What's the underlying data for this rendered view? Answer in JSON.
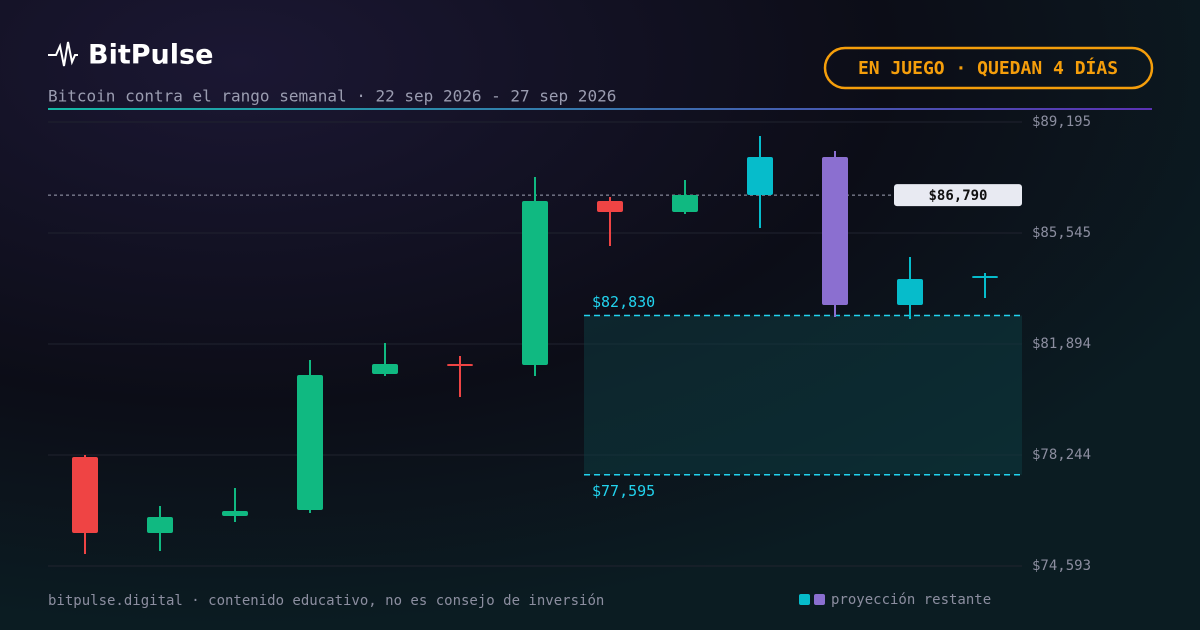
{
  "brand": "BitPulse",
  "subtitle": "Bitcoin contra el rango semanal · 22 sep 2026 - 27 sep 2026",
  "badge": "EN JUEGO · QUEDAN 4 DÍAS",
  "footer": "bitpulse.digital · contenido educativo, no es consejo de inversión",
  "chart_data": {
    "type": "candlestick",
    "ylim": [
      74593,
      89195
    ],
    "yticks": [
      {
        "value": 89195,
        "label": "$89,195"
      },
      {
        "value": 85545,
        "label": "$85,545"
      },
      {
        "value": 81894,
        "label": "$81,894"
      },
      {
        "value": 78244,
        "label": "$78,244"
      },
      {
        "value": 74593,
        "label": "$74,593"
      }
    ],
    "grid": true,
    "up_color": "#10b981",
    "down_color": "#ef4444",
    "projection_up_color": "#06bccb",
    "projection_down_color": "#8b6fd0",
    "candles": [
      {
        "open": 78178,
        "high": 78244,
        "low": 74988,
        "close": 75678,
        "projected": false
      },
      {
        "open": 75678,
        "high": 76566,
        "low": 75086,
        "close": 76205,
        "projected": false
      },
      {
        "open": 76237,
        "high": 77158,
        "low": 76040,
        "close": 76402,
        "projected": false
      },
      {
        "open": 76435,
        "high": 81368,
        "low": 76336,
        "close": 80875,
        "projected": false
      },
      {
        "open": 80907,
        "high": 81927,
        "low": 80842,
        "close": 81236,
        "projected": false
      },
      {
        "open": 81236,
        "high": 81499,
        "low": 80151,
        "close": 81203,
        "projected": false
      },
      {
        "open": 81203,
        "high": 87386,
        "low": 80842,
        "close": 86597,
        "projected": false
      },
      {
        "open": 86597,
        "high": 86728,
        "low": 85117,
        "close": 86235,
        "projected": false
      },
      {
        "open": 86235,
        "high": 87288,
        "low": 86169,
        "close": 86794,
        "projected": false
      },
      {
        "open": 86794,
        "high": 88735,
        "low": 85709,
        "close": 88044,
        "projected": true
      },
      {
        "open": 88044,
        "high": 88241,
        "low": 82782,
        "close": 83177,
        "projected": true
      },
      {
        "open": 83177,
        "high": 84755,
        "low": 82716,
        "close": 84032,
        "projected": true
      },
      {
        "open": 84097,
        "high": 84229,
        "low": 83407,
        "close": 84131,
        "projected": true
      }
    ],
    "current_price": {
      "value": 86790,
      "label": "$86,790"
    },
    "range": {
      "high": 82830,
      "high_label": "$82,830",
      "low": 77595,
      "low_label": "$77,595"
    },
    "legend": "proyección restante"
  }
}
